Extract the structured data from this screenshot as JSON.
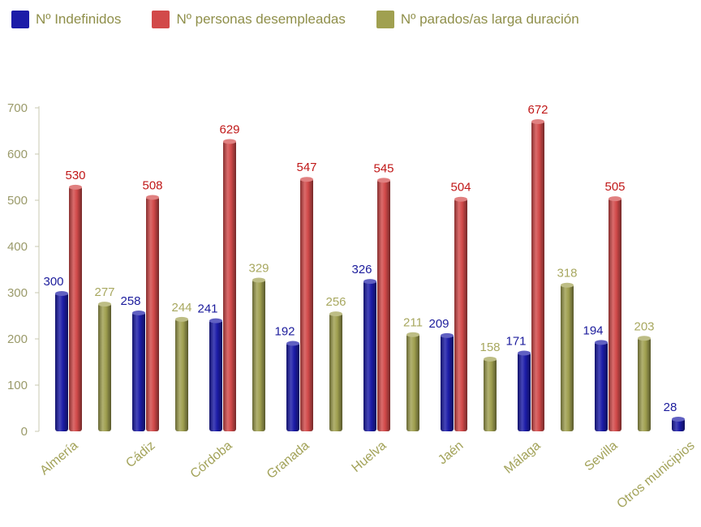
{
  "chart_data": {
    "type": "bar",
    "categories": [
      "Almería",
      "Cádiz",
      "Córdoba",
      "Granada",
      "Huelva",
      "Jaén",
      "Málaga",
      "Sevilla",
      "Otros municipios"
    ],
    "series": [
      {
        "name": "Nº Indefinidos",
        "color": "#1c1ca8",
        "label_color": "#1c1c9c",
        "values": [
          300,
          258,
          241,
          192,
          326,
          209,
          171,
          194,
          28
        ]
      },
      {
        "name": "Nº personas desempleadas",
        "color": "#d24a4a",
        "label_color": "#c01818",
        "values": [
          530,
          508,
          629,
          547,
          545,
          504,
          672,
          505,
          null
        ]
      },
      {
        "name": "Nº parados/as larga duración",
        "color": "#a0a050",
        "label_color": "#a8a860",
        "values": [
          277,
          244,
          329,
          256,
          211,
          158,
          318,
          203,
          null
        ]
      }
    ],
    "ylim": [
      0,
      700
    ],
    "yticks": [
      0,
      100,
      200,
      300,
      400,
      500,
      600,
      700
    ],
    "grid": false,
    "legend_position": "top-left"
  }
}
